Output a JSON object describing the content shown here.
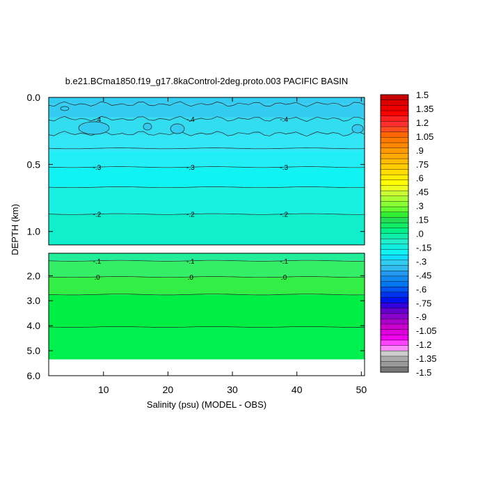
{
  "chart_data": {
    "type": "contour",
    "title": "b.e21.BCma1850.f19_g17.8kaControl-2deg.proto.003 PACIFIC BASIN",
    "xlabel": "Salinity (psu) (MODEL - OBS)",
    "ylabel": "DEPTH (km)",
    "xlim": [
      1.5,
      50.5
    ],
    "top_panel": {
      "ylim": [
        0.0,
        1.1
      ],
      "yticks": [
        "0.0",
        "0.5",
        "1.0"
      ],
      "yticks_values": [
        0.0,
        0.5,
        1.0
      ]
    },
    "bottom_panel": {
      "ylim": [
        1.1,
        6.0
      ],
      "yticks": [
        "2.0",
        "3.0",
        "4.0",
        "5.0",
        "6.0"
      ],
      "yticks_values": [
        2.0,
        3.0,
        4.0,
        5.0,
        6.0
      ],
      "data_bottom_depth": 5.35
    },
    "xticks": [
      "10",
      "20",
      "30",
      "40",
      "50"
    ],
    "xticks_values": [
      10,
      20,
      30,
      40,
      50
    ],
    "depth_bands_top": [
      {
        "d0": 0.0,
        "d1": 0.05,
        "color": "#33ccf0"
      },
      {
        "d0": 0.05,
        "d1": 0.15,
        "color": "#33ccf0"
      },
      {
        "d0": 0.15,
        "d1": 0.28,
        "color": "#33ddf0"
      },
      {
        "d0": 0.28,
        "d1": 0.4,
        "color": "#33e6f5"
      },
      {
        "d0": 0.4,
        "d1": 0.52,
        "color": "#22eef5"
      },
      {
        "d0": 0.52,
        "d1": 0.67,
        "color": "#11f2f2"
      },
      {
        "d0": 0.67,
        "d1": 0.87,
        "color": "#19f0e0"
      },
      {
        "d0": 0.87,
        "d1": 1.1,
        "color": "#11eecc"
      }
    ],
    "depth_bands_bottom": [
      {
        "d0": 1.1,
        "d1": 1.4,
        "color": "#22ee99"
      },
      {
        "d0": 1.4,
        "d1": 2.05,
        "color": "#33ee66"
      },
      {
        "d0": 2.05,
        "d1": 2.75,
        "color": "#33ee44"
      },
      {
        "d0": 2.75,
        "d1": 4.05,
        "color": "#00ee44"
      },
      {
        "d0": 4.05,
        "d1": 5.35,
        "color": "#00f050"
      }
    ],
    "contours_top": [
      {
        "depth": 0.38,
        "label": ""
      },
      {
        "depth": 0.52,
        "label": "-.3"
      },
      {
        "depth": 0.67,
        "label": ""
      },
      {
        "depth": 0.87,
        "label": "-.2"
      }
    ],
    "contours_top_noisy": [
      {
        "depth": 0.05,
        "label": ""
      },
      {
        "depth": 0.16,
        "label": "-.4"
      },
      {
        "depth": 0.27,
        "label": ""
      }
    ],
    "contours_bottom": [
      {
        "depth": 1.4,
        "label": "-.1"
      },
      {
        "depth": 2.05,
        "label": ".0"
      },
      {
        "depth": 2.75,
        "label": ""
      },
      {
        "depth": 4.05,
        "label": ""
      }
    ],
    "colorbar": {
      "min": -1.5,
      "max": 1.5,
      "labels": [
        "1.5",
        "1.35",
        "1.2",
        "1.05",
        ".9",
        ".75",
        ".6",
        ".45",
        ".3",
        ".15",
        ".0",
        "-.15",
        "-.3",
        "-.45",
        "-.6",
        "-.75",
        "-.9",
        "-1.05",
        "-1.2",
        "-1.35",
        "-1.5"
      ],
      "colors": [
        "#c80000",
        "#dd0000",
        "#ee0000",
        "#ff0000",
        "#ff2020",
        "#ff3030",
        "#ff4c20",
        "#ff6600",
        "#ff7a00",
        "#ff8800",
        "#ff9900",
        "#ffaa00",
        "#ffbb00",
        "#ffcc00",
        "#ffdd00",
        "#ffee00",
        "#ffff00",
        "#eeff22",
        "#ccff33",
        "#aaff33",
        "#88ff33",
        "#66ff33",
        "#33ee33",
        "#22dd55",
        "#11ee66",
        "#00ee88",
        "#11eeaa",
        "#22eecc",
        "#11eedd",
        "#11f2f2",
        "#11ddff",
        "#33ccf0",
        "#33bbee",
        "#2299ee",
        "#1188ee",
        "#0077ee",
        "#0055ee",
        "#0033ee",
        "#0011ee",
        "#3300dd",
        "#6600cc",
        "#8800cc",
        "#aa00cc",
        "#cc00cc",
        "#dd00dd",
        "#ee00ee",
        "#ff44ff",
        "#ff88ff",
        "#cccccc",
        "#aaaaaa",
        "#999999",
        "#777777"
      ]
    }
  }
}
